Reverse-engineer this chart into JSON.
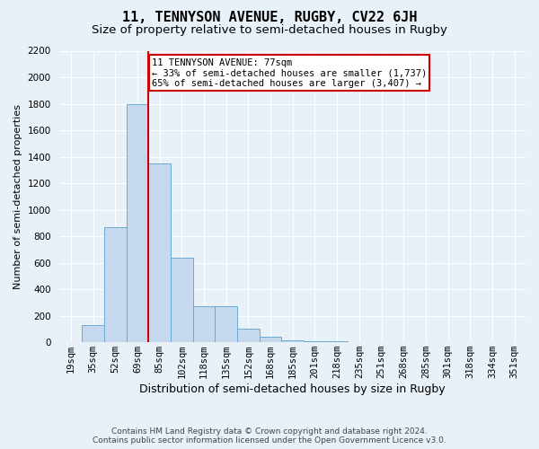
{
  "title": "11, TENNYSON AVENUE, RUGBY, CV22 6JH",
  "subtitle": "Size of property relative to semi-detached houses in Rugby",
  "xlabel": "Distribution of semi-detached houses by size in Rugby",
  "ylabel": "Number of semi-detached properties",
  "footer_line1": "Contains HM Land Registry data © Crown copyright and database right 2024.",
  "footer_line2": "Contains public sector information licensed under the Open Government Licence v3.0.",
  "bin_labels": [
    "19sqm",
    "35sqm",
    "52sqm",
    "69sqm",
    "85sqm",
    "102sqm",
    "118sqm",
    "135sqm",
    "152sqm",
    "168sqm",
    "185sqm",
    "201sqm",
    "218sqm",
    "235sqm",
    "251sqm",
    "268sqm",
    "285sqm",
    "301sqm",
    "318sqm",
    "334sqm",
    "351sqm"
  ],
  "bar_values": [
    0,
    130,
    870,
    1800,
    1350,
    640,
    270,
    270,
    100,
    40,
    15,
    5,
    5,
    3,
    2,
    1,
    1,
    1,
    1,
    1,
    1
  ],
  "bar_color": "#c5d8ee",
  "bar_edge_color": "#6aaad4",
  "property_line_x": 3.5,
  "annotation_title": "11 TENNYSON AVENUE: 77sqm",
  "annotation_line1": "← 33% of semi-detached houses are smaller (1,737)",
  "annotation_line2": "65% of semi-detached houses are larger (3,407) →",
  "annotation_box_color": "#ffffff",
  "annotation_box_edge_color": "#cc0000",
  "vline_color": "#cc0000",
  "ylim": [
    0,
    2200
  ],
  "yticks": [
    0,
    200,
    400,
    600,
    800,
    1000,
    1200,
    1400,
    1600,
    1800,
    2000,
    2200
  ],
  "bg_color": "#e8f0f8",
  "plot_bg_color": "#e8f0f8",
  "grid_color": "#ffffff",
  "title_fontsize": 11,
  "subtitle_fontsize": 9.5,
  "xlabel_fontsize": 9,
  "ylabel_fontsize": 8,
  "tick_fontsize": 7.5,
  "annotation_fontsize": 7.5
}
